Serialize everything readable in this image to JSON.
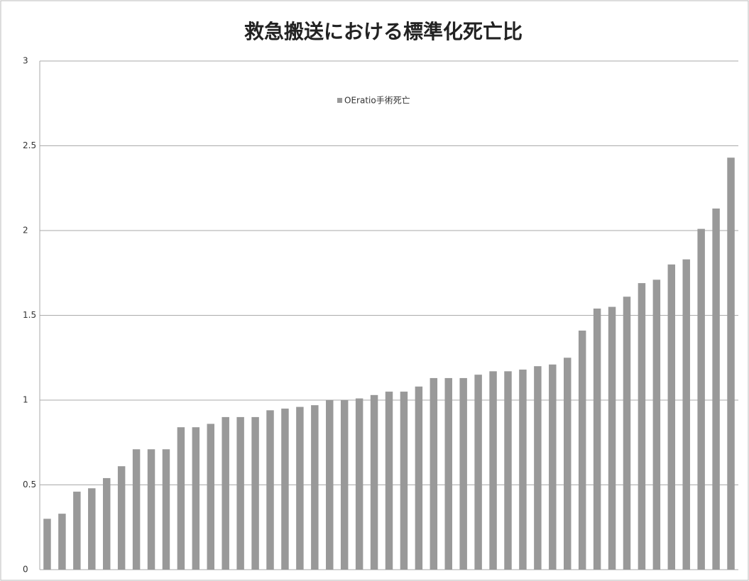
{
  "chart_data": {
    "type": "bar",
    "title": "救急搬送における標準化死亡比",
    "legend_label": "OEratio手術死亡",
    "categories": [
      null,
      null,
      null,
      null,
      null,
      null,
      null,
      null,
      null,
      null,
      null,
      null,
      null,
      null,
      null,
      null,
      null,
      null,
      null,
      null,
      null,
      null,
      null,
      null,
      null,
      null,
      null,
      null,
      null,
      null,
      null,
      null,
      null,
      null,
      null,
      null,
      null,
      null,
      null,
      null,
      null,
      null,
      null,
      null,
      null,
      null,
      null
    ],
    "values": [
      0.3,
      0.33,
      0.46,
      0.48,
      0.54,
      0.61,
      0.71,
      0.71,
      0.71,
      0.84,
      0.84,
      0.86,
      0.9,
      0.9,
      0.9,
      0.94,
      0.95,
      0.96,
      0.97,
      1.0,
      1.0,
      1.01,
      1.03,
      1.05,
      1.05,
      1.08,
      1.13,
      1.13,
      1.13,
      1.15,
      1.17,
      1.17,
      1.18,
      1.2,
      1.21,
      1.25,
      1.41,
      1.54,
      1.55,
      1.61,
      1.69,
      1.71,
      1.8,
      1.83,
      2.01,
      2.13,
      2.43
    ],
    "color": "#999999",
    "ylim": [
      0,
      3
    ],
    "yticks": [
      0,
      0.5,
      1,
      1.5,
      2,
      2.5,
      3
    ],
    "grid": true
  }
}
